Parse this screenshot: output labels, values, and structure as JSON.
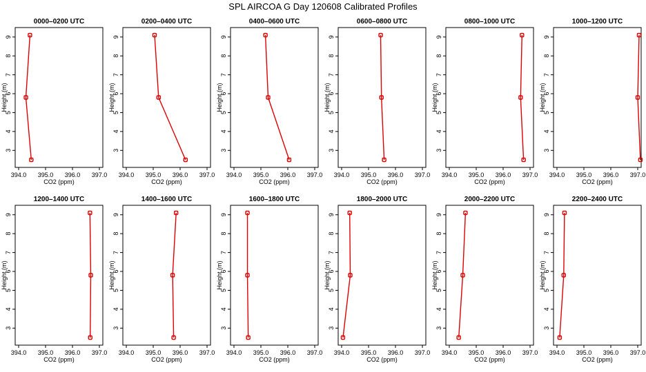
{
  "title": "SPL AIRCOA G  Day 120608  Calibrated Profiles",
  "colors": {
    "series": "#dd0000",
    "axes": "#000000",
    "background": "#ffffff"
  },
  "chart_data": [
    {
      "type": "line",
      "title": "0000–0200 UTC",
      "xlabel": "CO2 (ppm)",
      "ylabel": "Height (m)",
      "xlim": [
        394.0,
        397.0
      ],
      "ylim": [
        2.5,
        9.1
      ],
      "xticks": [
        "394.0",
        "395.0",
        "396.0",
        "397.0"
      ],
      "yticks": [
        "3",
        "4",
        "5",
        "6",
        "7",
        "8",
        "9"
      ],
      "x": [
        394.42,
        394.27,
        394.47
      ],
      "y": [
        9.1,
        5.8,
        2.5
      ]
    },
    {
      "type": "line",
      "title": "0200–0400 UTC",
      "xlabel": "CO2 (ppm)",
      "ylabel": "Height (m)",
      "xlim": [
        394.0,
        397.0
      ],
      "ylim": [
        2.5,
        9.1
      ],
      "xticks": [
        "394.0",
        "395.0",
        "396.0",
        "397.0"
      ],
      "yticks": [
        "3",
        "4",
        "5",
        "6",
        "7",
        "8",
        "9"
      ],
      "x": [
        395.05,
        395.2,
        396.2
      ],
      "y": [
        9.1,
        5.8,
        2.5
      ]
    },
    {
      "type": "line",
      "title": "0400–0600 UTC",
      "xlabel": "CO2 (ppm)",
      "ylabel": "Height (m)",
      "xlim": [
        394.0,
        397.0
      ],
      "ylim": [
        2.5,
        9.1
      ],
      "xticks": [
        "394.0",
        "395.0",
        "396.0",
        "397.0"
      ],
      "yticks": [
        "3",
        "4",
        "5",
        "6",
        "7",
        "8",
        "9"
      ],
      "x": [
        395.17,
        395.27,
        396.05
      ],
      "y": [
        9.1,
        5.8,
        2.5
      ]
    },
    {
      "type": "line",
      "title": "0600–0800 UTC",
      "xlabel": "CO2 (ppm)",
      "ylabel": "Height (m)",
      "xlim": [
        394.0,
        397.0
      ],
      "ylim": [
        2.5,
        9.1
      ],
      "xticks": [
        "394.0",
        "395.0",
        "396.0",
        "397.0"
      ],
      "yticks": [
        "3",
        "4",
        "5",
        "6",
        "7",
        "8",
        "9"
      ],
      "x": [
        395.45,
        395.48,
        395.58
      ],
      "y": [
        9.1,
        5.8,
        2.5
      ]
    },
    {
      "type": "line",
      "title": "0800–1000 UTC",
      "xlabel": "CO2 (ppm)",
      "ylabel": "Height (m)",
      "xlim": [
        394.0,
        397.0
      ],
      "ylim": [
        2.5,
        9.1
      ],
      "xticks": [
        "394.0",
        "395.0",
        "396.0",
        "397.0"
      ],
      "yticks": [
        "3",
        "4",
        "5",
        "6",
        "7",
        "8",
        "9"
      ],
      "x": [
        396.7,
        396.65,
        396.76
      ],
      "y": [
        9.1,
        5.8,
        2.5
      ]
    },
    {
      "type": "line",
      "title": "1000–1200 UTC",
      "xlabel": "CO2 (ppm)",
      "ylabel": "Height (m)",
      "xlim": [
        394.0,
        397.0
      ],
      "ylim": [
        2.5,
        9.1
      ],
      "xticks": [
        "394.0",
        "395.0",
        "396.0",
        "397.0"
      ],
      "yticks": [
        "3",
        "4",
        "5",
        "6",
        "7",
        "8",
        "9"
      ],
      "x": [
        397.05,
        397.0,
        397.1
      ],
      "y": [
        9.1,
        5.8,
        2.5
      ]
    },
    {
      "type": "line",
      "title": "1200–1400 UTC",
      "xlabel": "CO2 (ppm)",
      "ylabel": "Height (m)",
      "xlim": [
        394.0,
        397.0
      ],
      "ylim": [
        2.5,
        9.1
      ],
      "xticks": [
        "394.0",
        "395.0",
        "396.0",
        "397.0"
      ],
      "yticks": [
        "3",
        "4",
        "5",
        "6",
        "7",
        "8",
        "9"
      ],
      "x": [
        396.65,
        396.68,
        396.66
      ],
      "y": [
        9.1,
        5.8,
        2.5
      ]
    },
    {
      "type": "line",
      "title": "1400–1600 UTC",
      "xlabel": "CO2 (ppm)",
      "ylabel": "Height (m)",
      "xlim": [
        394.0,
        397.0
      ],
      "ylim": [
        2.5,
        9.1
      ],
      "xticks": [
        "394.0",
        "395.0",
        "396.0",
        "397.0"
      ],
      "yticks": [
        "3",
        "4",
        "5",
        "6",
        "7",
        "8",
        "9"
      ],
      "x": [
        395.85,
        395.72,
        395.76
      ],
      "y": [
        9.1,
        5.8,
        2.5
      ]
    },
    {
      "type": "line",
      "title": "1600–1800 UTC",
      "xlabel": "CO2 (ppm)",
      "ylabel": "Height (m)",
      "xlim": [
        394.0,
        397.0
      ],
      "ylim": [
        2.5,
        9.1
      ],
      "xticks": [
        "394.0",
        "395.0",
        "396.0",
        "397.0"
      ],
      "yticks": [
        "3",
        "4",
        "5",
        "6",
        "7",
        "8",
        "9"
      ],
      "x": [
        394.5,
        394.5,
        394.53
      ],
      "y": [
        9.1,
        5.8,
        2.5
      ]
    },
    {
      "type": "line",
      "title": "1800–2000 UTC",
      "xlabel": "CO2 (ppm)",
      "ylabel": "Height (m)",
      "xlim": [
        394.0,
        397.0
      ],
      "ylim": [
        2.5,
        9.1
      ],
      "xticks": [
        "394.0",
        "395.0",
        "396.0",
        "397.0"
      ],
      "yticks": [
        "3",
        "4",
        "5",
        "6",
        "7",
        "8",
        "9"
      ],
      "x": [
        394.3,
        394.32,
        394.05
      ],
      "y": [
        9.1,
        5.8,
        2.5
      ]
    },
    {
      "type": "line",
      "title": "2000–2200 UTC",
      "xlabel": "CO2 (ppm)",
      "ylabel": "Height (m)",
      "xlim": [
        394.0,
        397.0
      ],
      "ylim": [
        2.5,
        9.1
      ],
      "xticks": [
        "394.0",
        "395.0",
        "396.0",
        "397.0"
      ],
      "yticks": [
        "3",
        "4",
        "5",
        "6",
        "7",
        "8",
        "9"
      ],
      "x": [
        394.6,
        394.5,
        394.35
      ],
      "y": [
        9.1,
        5.8,
        2.5
      ]
    },
    {
      "type": "line",
      "title": "2200–2400 UTC",
      "xlabel": "CO2 (ppm)",
      "ylabel": "Height (m)",
      "xlim": [
        394.0,
        397.0
      ],
      "ylim": [
        2.5,
        9.1
      ],
      "xticks": [
        "394.0",
        "395.0",
        "396.0",
        "397.0"
      ],
      "yticks": [
        "3",
        "4",
        "5",
        "6",
        "7",
        "8",
        "9"
      ],
      "x": [
        394.28,
        394.25,
        394.1
      ],
      "y": [
        9.1,
        5.8,
        2.5
      ]
    }
  ]
}
